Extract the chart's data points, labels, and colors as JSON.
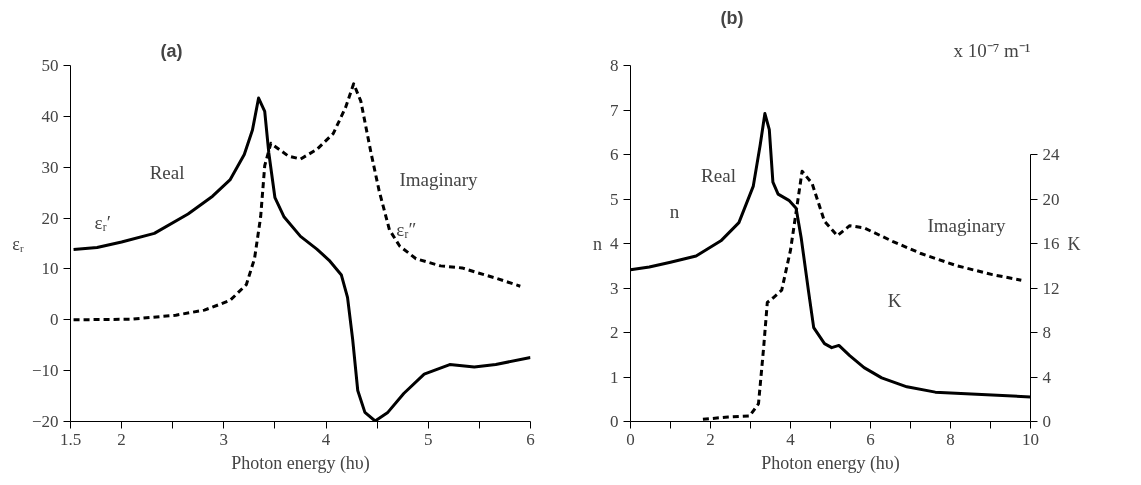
{
  "chart_data": [
    {
      "type": "line",
      "title": "(a)",
      "xlabel": "Photon energy (hυ)",
      "ylabel": "εᵣ",
      "xlim": [
        1.5,
        6
      ],
      "ylim": [
        -20,
        50
      ],
      "xticks": [
        1.5,
        2,
        {
          "value": 2.5,
          "label": null
        },
        3,
        {
          "value": 3.5,
          "label": null
        },
        4,
        {
          "value": 4.5,
          "label": null
        },
        5,
        {
          "value": 5.5,
          "label": null
        },
        6
      ],
      "yticks": [
        -20,
        -10,
        0,
        10,
        20,
        30,
        40,
        50
      ],
      "grid": false,
      "marker": "none",
      "series": [
        {
          "color": "#000000",
          "line_style": "solid",
          "x": [
            1.53,
            1.76,
            2.0,
            2.32,
            2.65,
            2.89,
            3.06,
            3.2,
            3.28,
            3.34,
            3.4,
            3.44,
            3.5,
            3.59,
            3.75,
            3.91,
            4.03,
            4.15,
            4.21,
            4.26,
            4.31,
            4.38,
            4.48,
            4.6,
            4.76,
            4.96,
            5.21,
            5.45,
            5.66,
            6.0
          ],
          "values": [
            13.8,
            14.2,
            15.3,
            17,
            20.8,
            24.3,
            27.5,
            32.5,
            37.3,
            43.6,
            41,
            32.8,
            24,
            20.2,
            16.4,
            13.9,
            11.7,
            8.8,
            4.4,
            -3.8,
            -13.9,
            -18.2,
            -19.9,
            -18.3,
            -14.5,
            -10.7,
            -8.8,
            -9.3,
            -8.8,
            -7.4
          ]
        },
        {
          "color": "#000000",
          "line_style": "dashed",
          "x": [
            1.53,
            2.08,
            2.53,
            2.81,
            3.06,
            3.22,
            3.3,
            3.36,
            3.4,
            3.46,
            3.63,
            3.75,
            3.91,
            4.07,
            4.19,
            4.27,
            4.34,
            4.44,
            4.52,
            4.62,
            4.72,
            4.88,
            5.12,
            5.33,
            5.49,
            5.66,
            5.9
          ],
          "values": [
            0,
            0.1,
            0.9,
            1.9,
            3.8,
            6.9,
            12,
            20.2,
            30.3,
            34.7,
            32.2,
            31.6,
            33.5,
            36.6,
            41.7,
            46.4,
            43,
            32.8,
            25.3,
            17.7,
            14.5,
            12,
            10.6,
            10.2,
            9.2,
            8.2,
            6.6
          ]
        }
      ],
      "annotations": [
        "Real",
        "εᵣ′",
        "Imaginary",
        "εᵣ″"
      ]
    },
    {
      "type": "line",
      "title": "(b)",
      "xlabel": "Photon energy (hυ)",
      "ylabel": "n",
      "y2label": "K",
      "xlim": [
        0,
        10
      ],
      "ylim": [
        0,
        8
      ],
      "y2lim": [
        0,
        32
      ],
      "xticks": [
        0,
        {
          "value": 1,
          "label": null
        },
        2,
        {
          "value": 3,
          "label": null
        },
        4,
        {
          "value": 5,
          "label": null
        },
        6,
        {
          "value": 7,
          "label": null
        },
        8,
        {
          "value": 9,
          "label": null
        },
        10
      ],
      "yticks": [
        0,
        1,
        2,
        3,
        4,
        5,
        6,
        7,
        8
      ],
      "y2ticks": [
        0,
        4,
        8,
        12,
        16,
        20,
        24
      ],
      "grid": false,
      "marker": "none",
      "series": [
        {
          "color": "#000000",
          "line_style": "solid",
          "x": [
            0,
            0.47,
            1.0,
            1.64,
            2.26,
            2.71,
            3.07,
            3.24,
            3.36,
            3.47,
            3.56,
            3.69,
            3.96,
            4.14,
            4.27,
            4.45,
            4.58,
            4.85,
            5.03,
            5.21,
            5.48,
            5.84,
            6.28,
            6.91,
            7.62,
            8.52,
            10
          ],
          "values": [
            3.41,
            3.47,
            3.58,
            3.72,
            4.06,
            4.47,
            5.29,
            6.2,
            6.92,
            6.56,
            5.38,
            5.11,
            4.97,
            4.79,
            4.11,
            2.93,
            2.11,
            1.75,
            1.66,
            1.71,
            1.48,
            1.21,
            0.98,
            0.78,
            0.66,
            0.62,
            0.55
          ]
        },
        {
          "color": "#000000",
          "line_style": "dashed",
          "axis": "y2",
          "x": [
            1.81,
            2.44,
            2.98,
            3.2,
            3.33,
            3.42,
            3.56,
            3.78,
            4.0,
            4.18,
            4.29,
            4.54,
            4.85,
            5.17,
            5.48,
            5.84,
            6.55,
            7.26,
            8.16,
            9.05,
            9.77
          ],
          "values": [
            0.2,
            0.4,
            0.5,
            1.6,
            6.7,
            10.7,
            11.1,
            11.8,
            15.4,
            19.8,
            22.5,
            21.4,
            18,
            16.7,
            17.6,
            17.4,
            16.2,
            15.1,
            14,
            13.2,
            12.7
          ]
        }
      ],
      "annotations": [
        "Real",
        "n",
        "Imaginary",
        "K",
        "x 10⁻⁷ m⁻¹"
      ]
    }
  ]
}
